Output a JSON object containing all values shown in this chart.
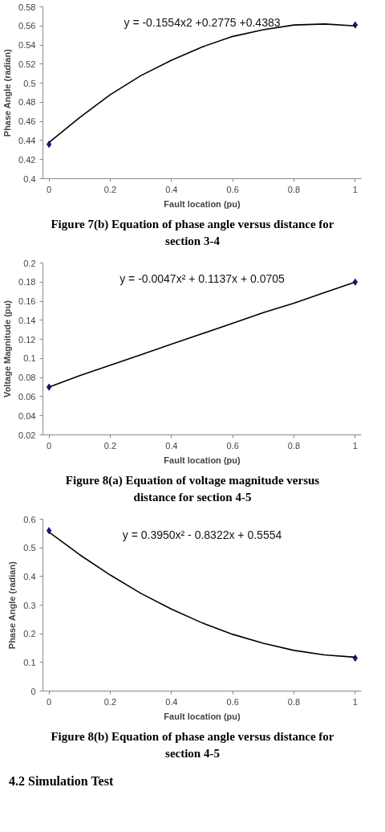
{
  "chart_data": [
    {
      "type": "scatter",
      "xlabel": "Fault location (pu)",
      "ylabel": "Phase Angle (radian)",
      "xlim": [
        -0.02,
        1.02
      ],
      "ylim": [
        0.4,
        0.58
      ],
      "xticks": [
        0,
        0.2,
        0.4,
        0.6,
        0.8,
        1
      ],
      "yticks": [
        0.4,
        0.42,
        0.44,
        0.46,
        0.48,
        0.5,
        0.52,
        0.54,
        0.56,
        0.58
      ],
      "grid": false,
      "series": [
        {
          "color": "#1a1a80",
          "marker": "diamond",
          "x": [
            0,
            1
          ],
          "values": [
            0.436,
            0.561
          ]
        },
        {
          "type": "line",
          "color": "#000000",
          "x": [
            0,
            0.1,
            0.2,
            0.3,
            0.4,
            0.5,
            0.6,
            0.7,
            0.8,
            0.9,
            1
          ],
          "values": [
            0.438,
            0.464,
            0.488,
            0.508,
            0.524,
            0.538,
            0.549,
            0.556,
            0.561,
            0.562,
            0.56
          ]
        }
      ],
      "annotations": [
        "y = -0.1554x2 +0.2775 +0.4383",
        "Figure 7(b) Equation of phase angle versus distance for section 3-4"
      ]
    },
    {
      "type": "scatter",
      "xlabel": "Fault location (pu)",
      "ylabel": "Voltage Magnitude (pu)",
      "xlim": [
        -0.02,
        1.02
      ],
      "ylim": [
        0.02,
        0.2
      ],
      "xticks": [
        0,
        0.2,
        0.4,
        0.6,
        0.8,
        1
      ],
      "yticks": [
        0.02,
        0.04,
        0.06,
        0.08,
        0.1,
        0.12,
        0.14,
        0.16,
        0.18,
        0.2
      ],
      "grid": false,
      "series": [
        {
          "color": "#1a1a80",
          "marker": "diamond",
          "x": [
            0,
            1
          ],
          "values": [
            0.07,
            0.18
          ]
        },
        {
          "type": "line",
          "color": "#000000",
          "x": [
            0,
            0.1,
            0.2,
            0.3,
            0.4,
            0.5,
            0.6,
            0.7,
            0.8,
            0.9,
            1
          ],
          "values": [
            0.07,
            0.082,
            0.093,
            0.104,
            0.115,
            0.126,
            0.137,
            0.148,
            0.158,
            0.169,
            0.18
          ]
        }
      ],
      "annotations": [
        "y = -0.0047x² + 0.1137x + 0.0705",
        "Figure 8(a) Equation of voltage magnitude versus distance for section 4-5"
      ]
    },
    {
      "type": "scatter",
      "xlabel": "Fault location (pu)",
      "ylabel": "Phase Angle (radian)",
      "xlim": [
        -0.02,
        1.02
      ],
      "ylim": [
        0,
        0.6
      ],
      "xticks": [
        0,
        0.2,
        0.4,
        0.6,
        0.8,
        1
      ],
      "yticks": [
        0,
        0.1,
        0.2,
        0.3,
        0.4,
        0.5,
        0.6
      ],
      "grid": false,
      "series": [
        {
          "color": "#1a1a80",
          "marker": "diamond",
          "x": [
            0,
            1
          ],
          "values": [
            0.56,
            0.115
          ]
        },
        {
          "type": "line",
          "color": "#000000",
          "x": [
            0,
            0.1,
            0.2,
            0.3,
            0.4,
            0.5,
            0.6,
            0.7,
            0.8,
            0.9,
            1
          ],
          "values": [
            0.555,
            0.476,
            0.405,
            0.341,
            0.286,
            0.238,
            0.198,
            0.167,
            0.142,
            0.126,
            0.118
          ]
        }
      ],
      "annotations": [
        "y = 0.3950x² - 0.8322x + 0.5554",
        "Figure 8(b) Equation of phase angle versus distance for section 4-5",
        "4.2 Simulation Test"
      ]
    }
  ]
}
